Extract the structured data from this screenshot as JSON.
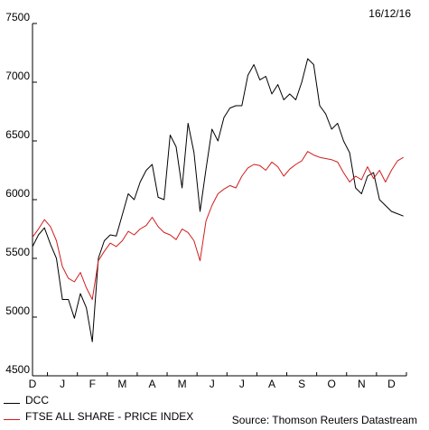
{
  "header": {
    "date": "16/12/16"
  },
  "footer": {
    "source": "Source: Thomson Reuters Datastream"
  },
  "chart_data": {
    "type": "line",
    "title": "",
    "xlabel": "",
    "ylabel": "",
    "ylim": [
      4500,
      7500
    ],
    "yticks": [
      4500,
      5000,
      5500,
      6000,
      6500,
      7000,
      7500
    ],
    "xlim": [
      0,
      12.5
    ],
    "month_labels": [
      "D",
      "J",
      "F",
      "M",
      "A",
      "M",
      "J",
      "J",
      "A",
      "S",
      "O",
      "N",
      "D"
    ],
    "grid": false,
    "legend_position": "bottom-left",
    "series": [
      {
        "name": "DCC",
        "color": "#000000",
        "points": [
          [
            0.0,
            5600
          ],
          [
            0.2,
            5700
          ],
          [
            0.4,
            5760
          ],
          [
            0.6,
            5620
          ],
          [
            0.8,
            5500
          ],
          [
            1.0,
            5150
          ],
          [
            1.2,
            5150
          ],
          [
            1.4,
            4990
          ],
          [
            1.6,
            5200
          ],
          [
            1.8,
            5080
          ],
          [
            2.0,
            4790
          ],
          [
            2.2,
            5500
          ],
          [
            2.4,
            5650
          ],
          [
            2.6,
            5700
          ],
          [
            2.8,
            5690
          ],
          [
            3.0,
            5870
          ],
          [
            3.2,
            6050
          ],
          [
            3.4,
            6000
          ],
          [
            3.6,
            6150
          ],
          [
            3.8,
            6250
          ],
          [
            4.0,
            6300
          ],
          [
            4.2,
            6020
          ],
          [
            4.4,
            6000
          ],
          [
            4.6,
            6550
          ],
          [
            4.8,
            6450
          ],
          [
            5.0,
            6100
          ],
          [
            5.2,
            6650
          ],
          [
            5.4,
            6400
          ],
          [
            5.6,
            5900
          ],
          [
            5.8,
            6260
          ],
          [
            6.0,
            6600
          ],
          [
            6.2,
            6500
          ],
          [
            6.4,
            6700
          ],
          [
            6.6,
            6780
          ],
          [
            6.8,
            6800
          ],
          [
            7.0,
            6800
          ],
          [
            7.2,
            7060
          ],
          [
            7.4,
            7150
          ],
          [
            7.6,
            7020
          ],
          [
            7.8,
            7050
          ],
          [
            8.0,
            6900
          ],
          [
            8.2,
            6980
          ],
          [
            8.4,
            6850
          ],
          [
            8.6,
            6900
          ],
          [
            8.8,
            6850
          ],
          [
            9.0,
            7000
          ],
          [
            9.2,
            7200
          ],
          [
            9.4,
            7150
          ],
          [
            9.6,
            6800
          ],
          [
            9.8,
            6730
          ],
          [
            10.0,
            6600
          ],
          [
            10.2,
            6650
          ],
          [
            10.4,
            6500
          ],
          [
            10.6,
            6400
          ],
          [
            10.8,
            6100
          ],
          [
            11.0,
            6050
          ],
          [
            11.2,
            6200
          ],
          [
            11.4,
            6230
          ],
          [
            11.6,
            6000
          ],
          [
            11.8,
            5950
          ],
          [
            12.0,
            5900
          ],
          [
            12.2,
            5880
          ],
          [
            12.4,
            5860
          ]
        ]
      },
      {
        "name": "FTSE ALL SHARE - PRICE INDEX",
        "color": "#d01d1d",
        "points": [
          [
            0.0,
            5680
          ],
          [
            0.2,
            5750
          ],
          [
            0.4,
            5830
          ],
          [
            0.6,
            5770
          ],
          [
            0.8,
            5650
          ],
          [
            1.0,
            5430
          ],
          [
            1.2,
            5330
          ],
          [
            1.4,
            5300
          ],
          [
            1.6,
            5380
          ],
          [
            1.8,
            5250
          ],
          [
            2.0,
            5150
          ],
          [
            2.2,
            5480
          ],
          [
            2.4,
            5560
          ],
          [
            2.6,
            5630
          ],
          [
            2.8,
            5600
          ],
          [
            3.0,
            5650
          ],
          [
            3.2,
            5730
          ],
          [
            3.4,
            5700
          ],
          [
            3.6,
            5750
          ],
          [
            3.8,
            5780
          ],
          [
            4.0,
            5850
          ],
          [
            4.2,
            5770
          ],
          [
            4.4,
            5720
          ],
          [
            4.6,
            5700
          ],
          [
            4.8,
            5660
          ],
          [
            5.0,
            5750
          ],
          [
            5.2,
            5720
          ],
          [
            5.4,
            5650
          ],
          [
            5.6,
            5480
          ],
          [
            5.8,
            5820
          ],
          [
            6.0,
            5950
          ],
          [
            6.2,
            6050
          ],
          [
            6.4,
            6090
          ],
          [
            6.6,
            6120
          ],
          [
            6.8,
            6100
          ],
          [
            7.0,
            6200
          ],
          [
            7.2,
            6270
          ],
          [
            7.4,
            6300
          ],
          [
            7.6,
            6290
          ],
          [
            7.8,
            6250
          ],
          [
            8.0,
            6320
          ],
          [
            8.2,
            6280
          ],
          [
            8.4,
            6200
          ],
          [
            8.6,
            6260
          ],
          [
            8.8,
            6300
          ],
          [
            9.0,
            6330
          ],
          [
            9.2,
            6410
          ],
          [
            9.4,
            6380
          ],
          [
            9.6,
            6360
          ],
          [
            9.8,
            6350
          ],
          [
            10.0,
            6340
          ],
          [
            10.2,
            6320
          ],
          [
            10.4,
            6230
          ],
          [
            10.6,
            6150
          ],
          [
            10.8,
            6200
          ],
          [
            11.0,
            6170
          ],
          [
            11.2,
            6280
          ],
          [
            11.4,
            6180
          ],
          [
            11.6,
            6250
          ],
          [
            11.8,
            6150
          ],
          [
            12.0,
            6250
          ],
          [
            12.2,
            6330
          ],
          [
            12.4,
            6360
          ]
        ]
      }
    ]
  }
}
